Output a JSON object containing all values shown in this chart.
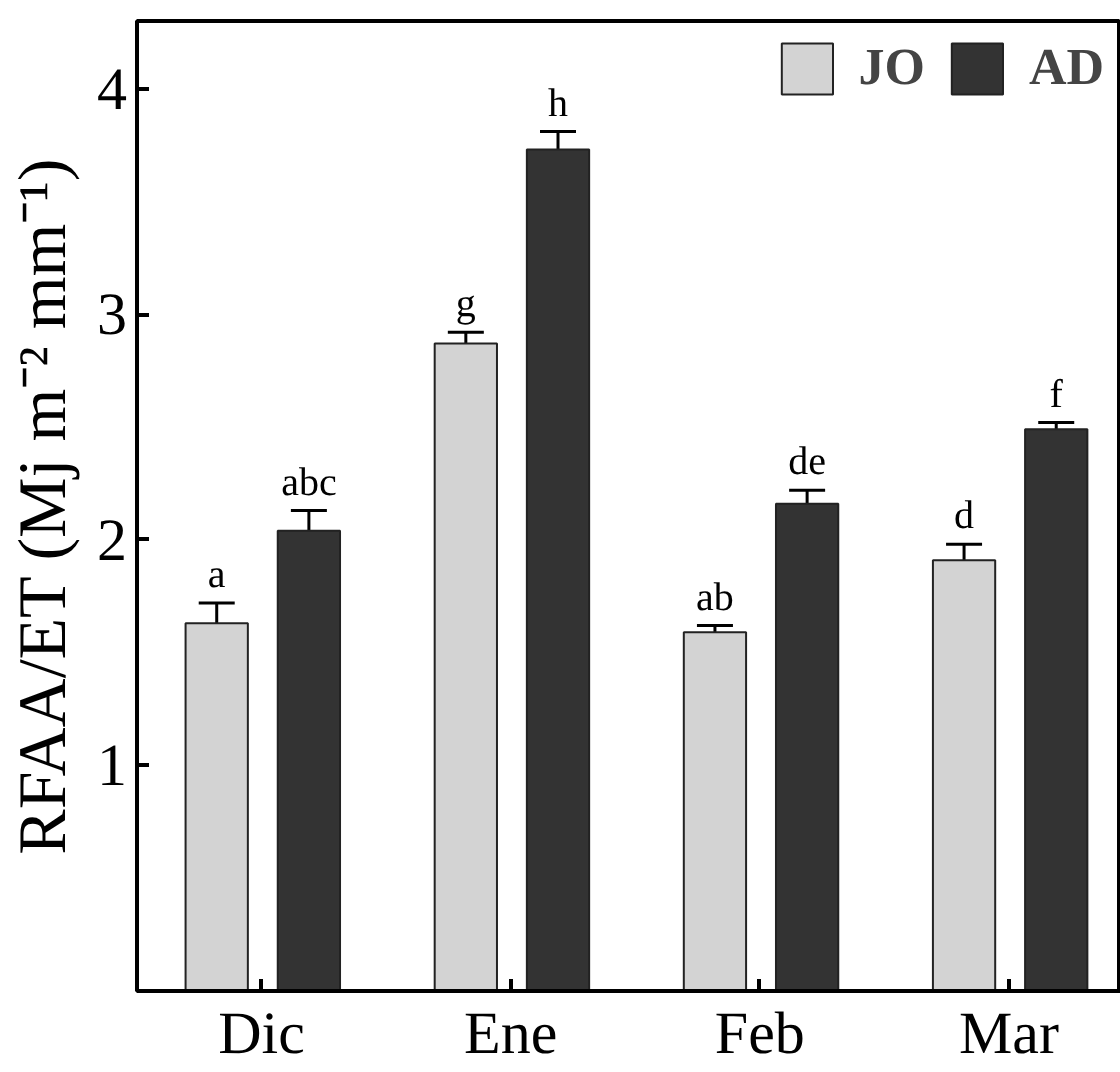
{
  "chart_data": {
    "type": "bar",
    "ylabel": "RFAA/ET (Mj m⁻² mm⁻¹)",
    "categories": [
      "Dic",
      "Ene",
      "Feb",
      "Mar"
    ],
    "series": [
      {
        "name": "JO",
        "color": "#d3d3d3",
        "values": [
          1.63,
          2.87,
          1.59,
          1.91
        ],
        "errors": [
          0.09,
          0.05,
          0.03,
          0.07
        ],
        "value_labels": [
          "a",
          "g",
          "ab",
          "d"
        ]
      },
      {
        "name": "AD",
        "color": "#333333",
        "values": [
          2.04,
          3.73,
          2.16,
          2.49
        ],
        "errors": [
          0.09,
          0.08,
          0.06,
          0.03
        ],
        "value_labels": [
          "abc",
          "h",
          "de",
          "f"
        ]
      }
    ],
    "ylim": [
      0,
      4.3
    ],
    "yticks": [
      1,
      2,
      3,
      4
    ],
    "grid": false,
    "legend": "top right"
  }
}
